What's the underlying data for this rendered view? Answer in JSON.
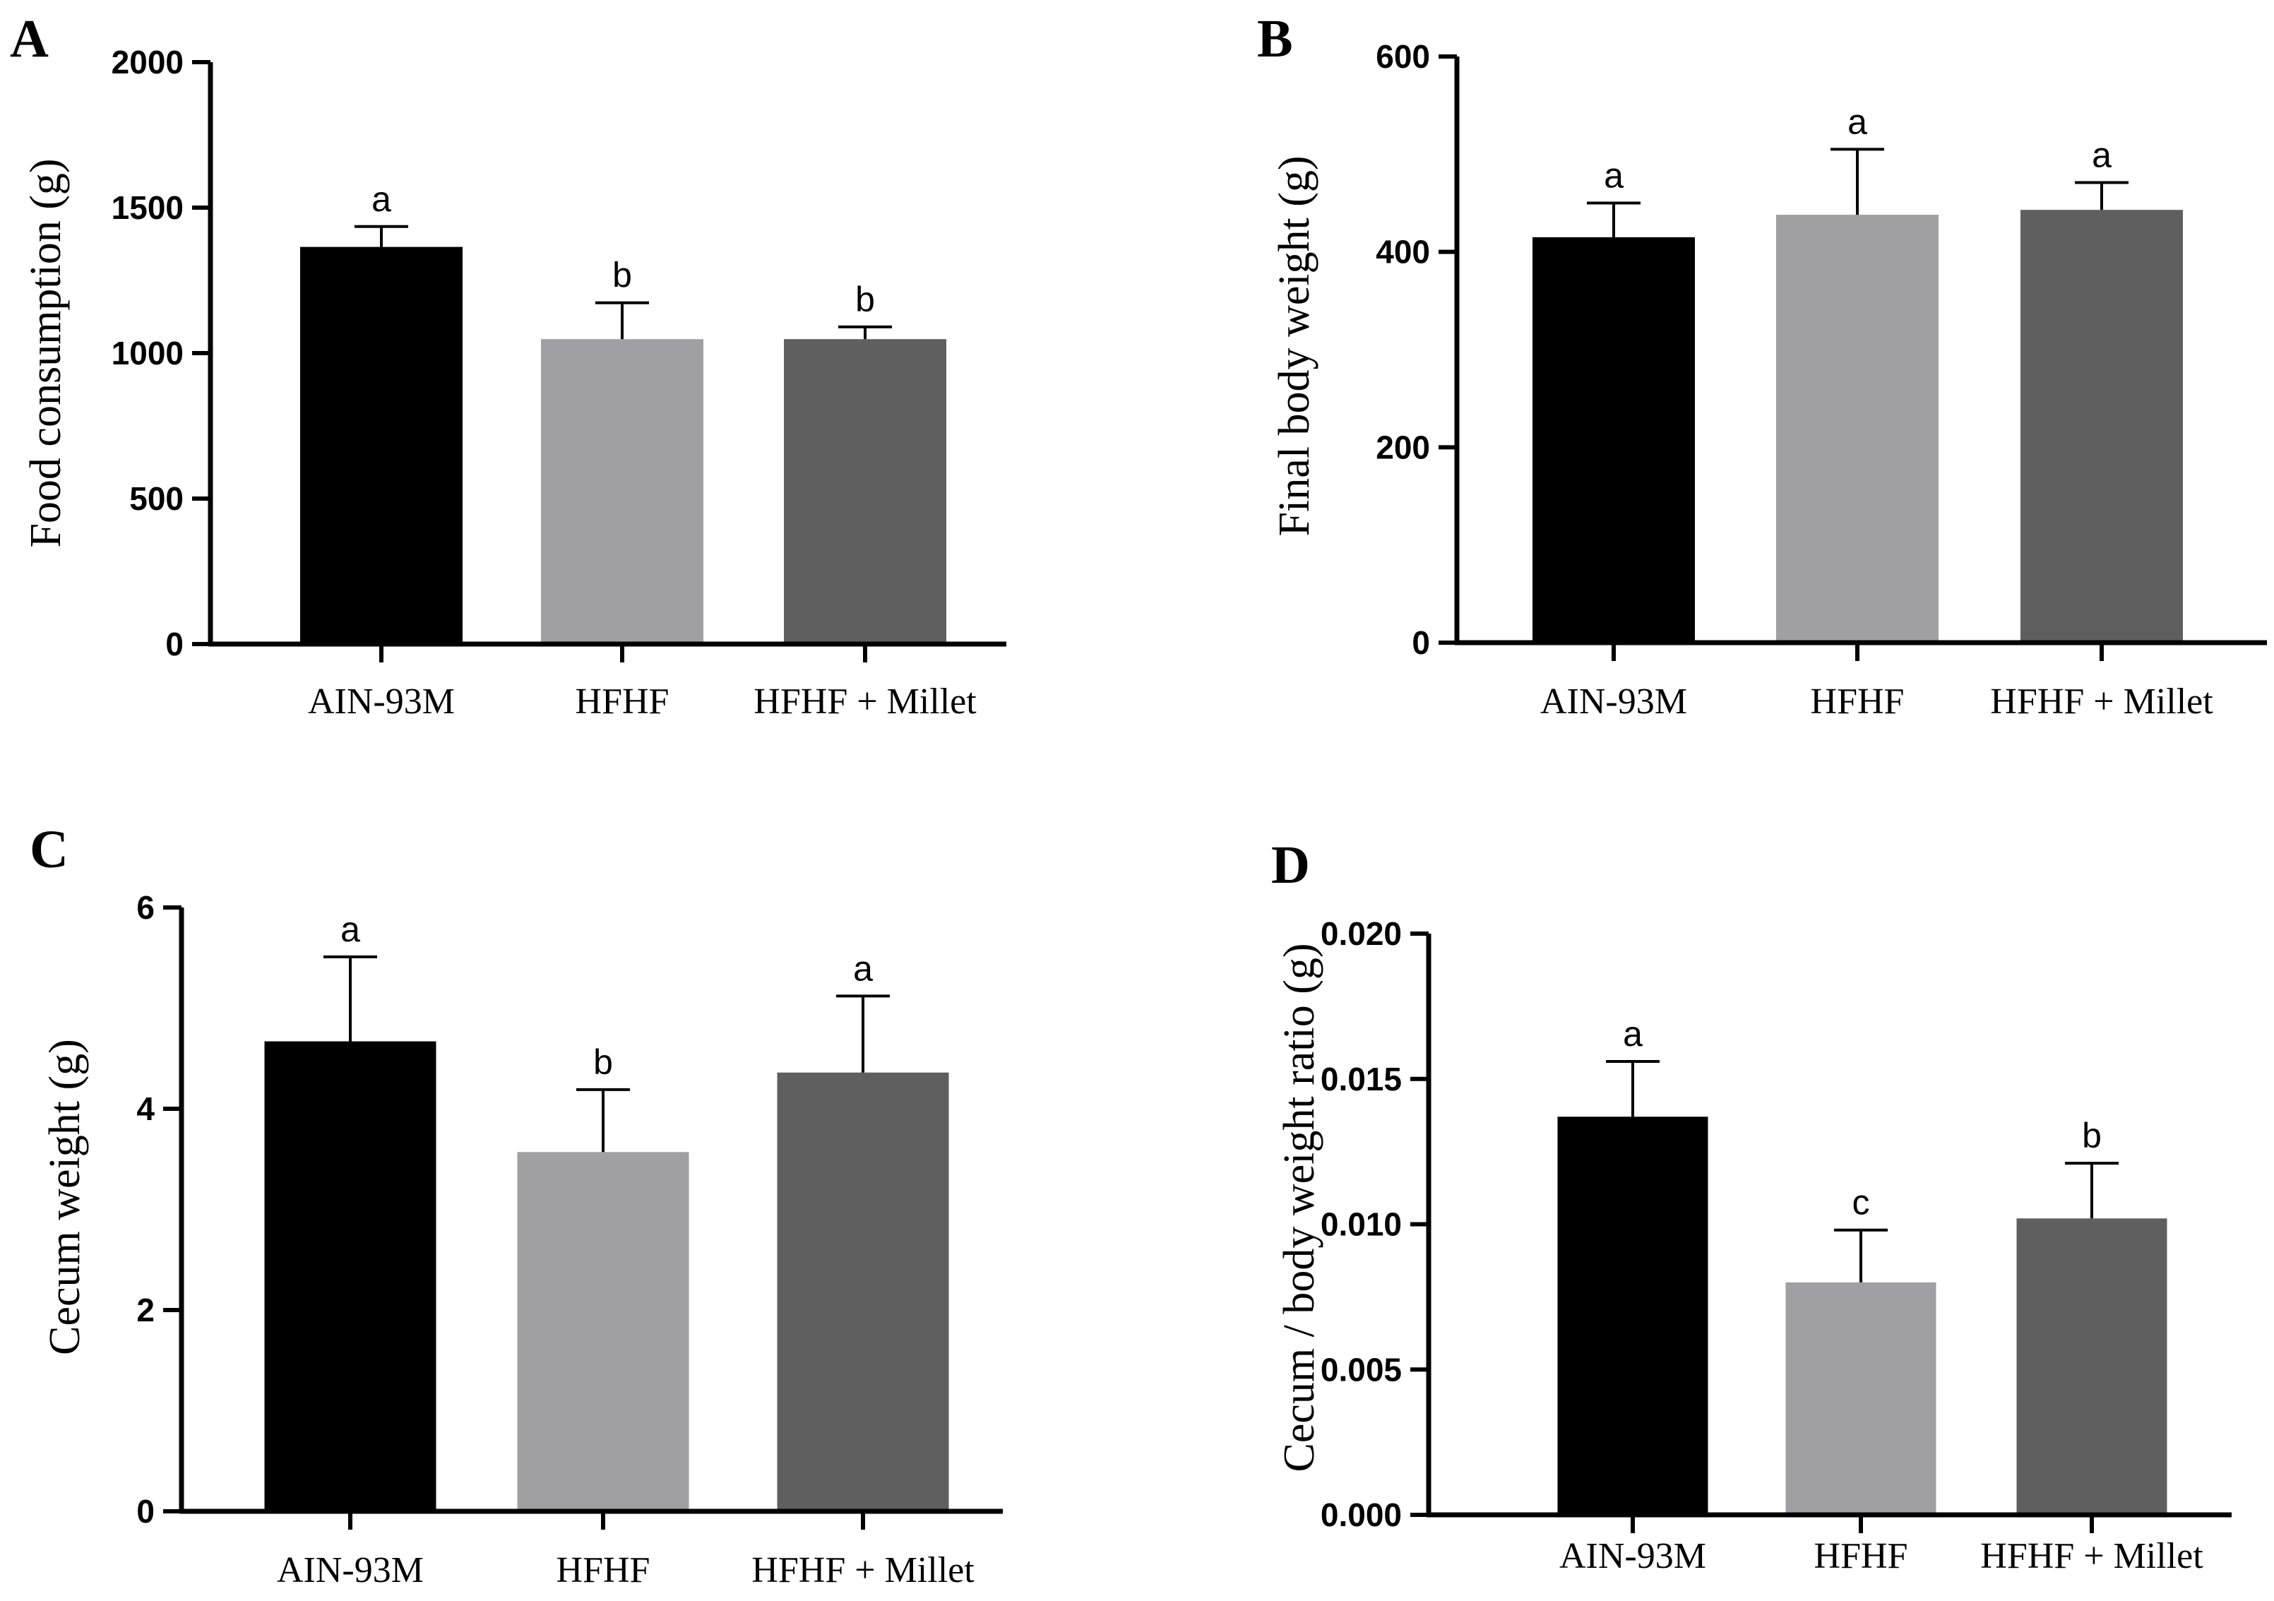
{
  "colors": {
    "AIN-93M": "#000000",
    "HFHF": "#a0a0a4",
    "HFHF + Millet": "#5f5f5f"
  },
  "chart_data": [
    {
      "panel": "A",
      "type": "bar",
      "ylabel": "Food consumption  (g)",
      "categories": [
        "AIN-93M",
        "HFHF",
        "HFHF + Millet"
      ],
      "values": [
        1365,
        1048,
        1048
      ],
      "errors": [
        70,
        125,
        42
      ],
      "significance": [
        "a",
        "b",
        "b"
      ],
      "ylim": [
        0,
        2000
      ],
      "yticks": [
        "0",
        "500",
        "1000",
        "1500",
        "2000"
      ],
      "ytick_values": [
        0,
        500,
        1000,
        1500,
        2000
      ]
    },
    {
      "panel": "B",
      "type": "bar",
      "ylabel": "Final body weight (g)",
      "categories": [
        "AIN-93M",
        "HFHF",
        "HFHF + Millet"
      ],
      "values": [
        415,
        438,
        443
      ],
      "errors": [
        35,
        67,
        28
      ],
      "significance": [
        "a",
        "a",
        "a"
      ],
      "ylim": [
        0,
        600
      ],
      "yticks": [
        "0",
        "200",
        "400",
        "600"
      ],
      "ytick_values": [
        0,
        200,
        400,
        600
      ]
    },
    {
      "panel": "C",
      "type": "bar",
      "ylabel": "Cecum weight (g)",
      "categories": [
        "AIN-93M",
        "HFHF",
        "HFHF + Millet"
      ],
      "values": [
        4.67,
        3.57,
        4.36
      ],
      "errors": [
        0.84,
        0.62,
        0.76
      ],
      "significance": [
        "a",
        "b",
        "a"
      ],
      "ylim": [
        0,
        6
      ],
      "yticks": [
        "0",
        "2",
        "4",
        "6"
      ],
      "ytick_values": [
        0,
        2,
        4,
        6
      ]
    },
    {
      "panel": "D",
      "type": "bar",
      "ylabel": "Cecum / body weight ratio (g)",
      "categories": [
        "AIN-93M",
        "HFHF",
        "HFHF + Millet"
      ],
      "values": [
        0.0137,
        0.008,
        0.0102
      ],
      "errors": [
        0.0019,
        0.0018,
        0.0019
      ],
      "significance": [
        "a",
        "c",
        "b"
      ],
      "ylim": [
        0,
        0.02
      ],
      "yticks": [
        "0.000",
        "0.005",
        "0.010",
        "0.015",
        "0.020"
      ],
      "ytick_values": [
        0,
        0.005,
        0.01,
        0.015,
        0.02
      ]
    }
  ]
}
